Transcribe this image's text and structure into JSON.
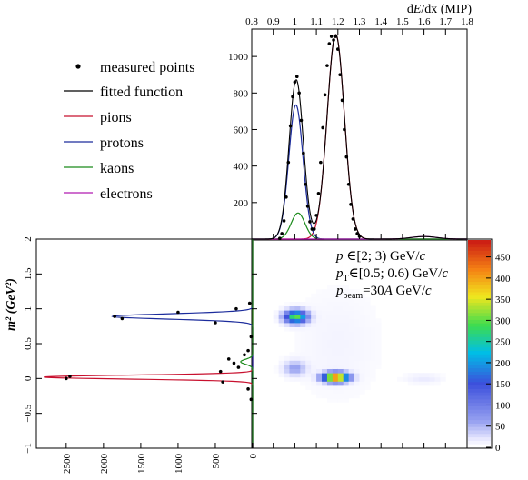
{
  "chart_data": [
    {
      "id": "top",
      "type": "line",
      "panel": "top-right",
      "xlabel_base": "d",
      "xlabel_italic": "E",
      "xlabel_rest": "/dx (MIP)",
      "xlim": [
        0.8,
        1.8
      ],
      "ylim": [
        0,
        1150
      ],
      "xticks": [
        "0.8",
        "0.9",
        "1",
        "1.1",
        "1.2",
        "1.3",
        "1.4",
        "1.5",
        "1.6",
        "1.7",
        "1.8"
      ],
      "yticks": [
        "200",
        "400",
        "600",
        "800",
        "1000"
      ],
      "legend": [
        "measured points",
        "fitted function",
        "pions",
        "protons",
        "kaons",
        "electrons"
      ],
      "series": [
        {
          "name": "pions",
          "color": "#c8102e",
          "mu": 1.19,
          "sigma": 0.04,
          "amp": 1120
        },
        {
          "name": "protons",
          "color": "#1c2c9c",
          "mu": 1.005,
          "sigma": 0.033,
          "amp": 735
        },
        {
          "name": "kaons",
          "color": "#1a8a1a",
          "mu": 1.015,
          "sigma": 0.032,
          "amp": 143
        },
        {
          "name": "electrons",
          "color": "#b01ab0",
          "mu": 1.6,
          "sigma": 0.06,
          "amp": 14
        }
      ],
      "points": [
        {
          "x": 0.93,
          "y": 4
        },
        {
          "x": 0.94,
          "y": 30
        },
        {
          "x": 0.95,
          "y": 100
        },
        {
          "x": 0.96,
          "y": 230
        },
        {
          "x": 0.97,
          "y": 420
        },
        {
          "x": 0.98,
          "y": 620
        },
        {
          "x": 0.99,
          "y": 780
        },
        {
          "x": 1.0,
          "y": 860
        },
        {
          "x": 1.01,
          "y": 890
        },
        {
          "x": 1.02,
          "y": 800
        },
        {
          "x": 1.03,
          "y": 650
        },
        {
          "x": 1.04,
          "y": 470
        },
        {
          "x": 1.05,
          "y": 300
        },
        {
          "x": 1.06,
          "y": 180
        },
        {
          "x": 1.07,
          "y": 95
        },
        {
          "x": 1.08,
          "y": 55
        },
        {
          "x": 1.09,
          "y": 55
        },
        {
          "x": 1.1,
          "y": 130
        },
        {
          "x": 1.11,
          "y": 250
        },
        {
          "x": 1.12,
          "y": 420
        },
        {
          "x": 1.13,
          "y": 610
        },
        {
          "x": 1.14,
          "y": 790
        },
        {
          "x": 1.15,
          "y": 950
        },
        {
          "x": 1.16,
          "y": 1070
        },
        {
          "x": 1.17,
          "y": 1110
        },
        {
          "x": 1.18,
          "y": 1090
        },
        {
          "x": 1.19,
          "y": 1110
        },
        {
          "x": 1.2,
          "y": 1040
        },
        {
          "x": 1.21,
          "y": 900
        },
        {
          "x": 1.22,
          "y": 760
        },
        {
          "x": 1.23,
          "y": 600
        },
        {
          "x": 1.24,
          "y": 450
        },
        {
          "x": 1.25,
          "y": 300
        },
        {
          "x": 1.26,
          "y": 190
        },
        {
          "x": 1.27,
          "y": 110
        },
        {
          "x": 1.28,
          "y": 55
        },
        {
          "x": 1.29,
          "y": 30
        },
        {
          "x": 1.3,
          "y": 15
        }
      ]
    },
    {
      "id": "left",
      "type": "line",
      "panel": "bottom-left",
      "ylabel": "m² (GeV²)",
      "xlim": [
        2900,
        0
      ],
      "ylim": [
        -1,
        2
      ],
      "xticks": [
        "2500",
        "2000",
        "1500",
        "1000",
        "500",
        "0"
      ],
      "yticks": [
        "−1",
        "−0.5",
        "0",
        "0.5",
        "1",
        "1.5",
        "2"
      ],
      "series": [
        {
          "name": "pions",
          "color": "#c8102e",
          "mu": 0.02,
          "sigma": 0.028,
          "amp": 2800
        },
        {
          "name": "protons",
          "color": "#1c2c9c",
          "mu": 0.89,
          "sigma": 0.038,
          "amp": 1880
        },
        {
          "name": "kaons",
          "color": "#1a8a1a",
          "mu": 0.24,
          "sigma": 0.035,
          "amp": 160
        }
      ],
      "points": [
        {
          "y": 0.03,
          "x": 2450
        },
        {
          "y": 0.0,
          "x": 2500
        },
        {
          "y": -0.05,
          "x": 400
        },
        {
          "y": 0.1,
          "x": 430
        },
        {
          "y": 0.16,
          "x": 190
        },
        {
          "y": 0.22,
          "x": 250
        },
        {
          "y": 0.28,
          "x": 320
        },
        {
          "y": 0.34,
          "x": 110
        },
        {
          "y": 0.4,
          "x": 60
        },
        {
          "y": 0.8,
          "x": 500
        },
        {
          "y": 0.86,
          "x": 1750
        },
        {
          "y": 0.89,
          "x": 1850
        },
        {
          "y": 0.95,
          "x": 1000
        },
        {
          "y": 1.0,
          "x": 220
        },
        {
          "y": 1.08,
          "x": 40
        },
        {
          "y": 0.6,
          "x": 20
        },
        {
          "y": -0.15,
          "x": 60
        },
        {
          "y": -0.3,
          "x": 20
        }
      ]
    },
    {
      "id": "heatmap",
      "type": "heatmap",
      "panel": "bottom-right",
      "color_scale_ticks": [
        "0",
        "50",
        "100",
        "150",
        "200",
        "250",
        "300",
        "350",
        "400",
        "450"
      ],
      "zlim": [
        0,
        490
      ],
      "blobs": [
        {
          "x": 1.19,
          "y": 0.02,
          "sx": 0.038,
          "sy": 0.045,
          "z": 490
        },
        {
          "x": 1.005,
          "y": 0.89,
          "sx": 0.035,
          "sy": 0.06,
          "z": 300
        },
        {
          "x": 1.0,
          "y": 0.15,
          "sx": 0.035,
          "sy": 0.07,
          "z": 60
        },
        {
          "x": 1.2,
          "y": 0.5,
          "sx": 0.15,
          "sy": 0.6,
          "z": 8
        },
        {
          "x": 1.6,
          "y": 0.0,
          "sx": 0.06,
          "sy": 0.05,
          "z": 15
        }
      ]
    }
  ],
  "annotations": {
    "p_sym": "p",
    "p_range": " ∈[2; 3) GeV/",
    "c": "c",
    "pt_sym": "p",
    "pt_sub": "T",
    "pt_range": "∈[0.5; 0.6) GeV/",
    "pbeam_sym": "p",
    "pbeam_sub": "beam",
    "pbeam_val": "=30",
    "pbeam_A": "A",
    "pbeam_unit": " GeV/"
  }
}
